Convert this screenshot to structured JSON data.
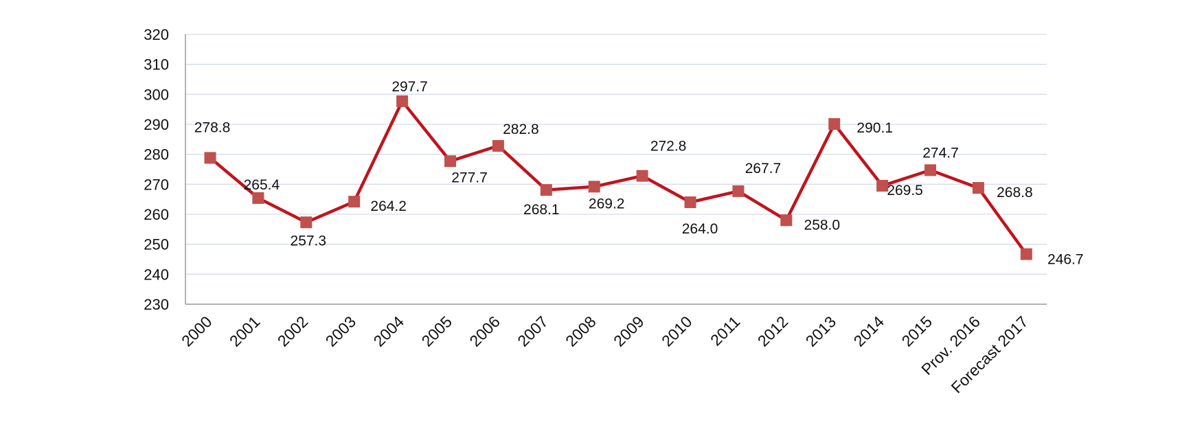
{
  "chart_data": {
    "type": "line",
    "title": "",
    "xlabel": "",
    "ylabel": "",
    "ylim": [
      230,
      320
    ],
    "yticks": [
      230,
      240,
      250,
      260,
      270,
      280,
      290,
      300,
      310,
      320
    ],
    "grid": "horizontal",
    "legend": "none",
    "categories": [
      "2000",
      "2001",
      "2002",
      "2003",
      "2004",
      "2005",
      "2006",
      "2007",
      "2008",
      "2009",
      "2010",
      "2011",
      "2012",
      "2013",
      "2014",
      "2015",
      "Prov. 2016",
      "Forecast 2017"
    ],
    "series": [
      {
        "color": "#c0141e",
        "marker_color": "#c0504d",
        "values": [
          278.8,
          265.4,
          257.3,
          264.2,
          297.7,
          277.7,
          282.8,
          268.1,
          269.2,
          272.8,
          264.0,
          267.7,
          258.0,
          290.1,
          269.5,
          274.7,
          268.8,
          246.7
        ],
        "labels": [
          "278.8",
          "265.4",
          "257.3",
          "264.2",
          "297.7",
          "277.7",
          "282.8",
          "268.1",
          "269.2",
          "272.8",
          "264.0",
          "267.7",
          "258.0",
          "290.1",
          "269.5",
          "274.7",
          "268.8",
          "246.7"
        ]
      }
    ]
  }
}
